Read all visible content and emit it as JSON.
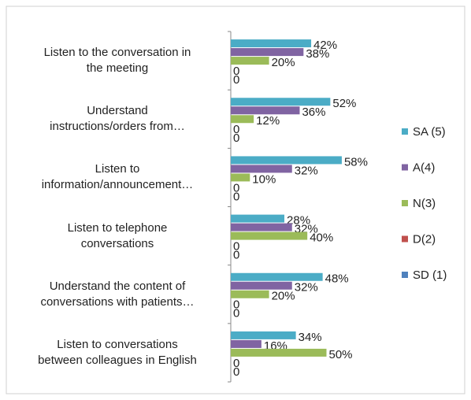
{
  "chart_data": {
    "type": "bar",
    "orientation": "horizontal",
    "categories": [
      "Listen to the conversation in\nthe meeting",
      "Understand\ninstructions/orders from…",
      "Listen to\ninformation/announcement…",
      "Listen to  telephone\nconversations",
      "Understand the content of\nconversations with patients…",
      "Listen to conversations\nbetween colleagues in English"
    ],
    "series": [
      {
        "name": "SA (5)",
        "color": "#4bacc6",
        "values": [
          42,
          52,
          58,
          28,
          48,
          34
        ],
        "value_labels": [
          "42%",
          "52%",
          "58%",
          "28%",
          "48%",
          "34%"
        ]
      },
      {
        "name": "A(4)",
        "color": "#8064a2",
        "values": [
          38,
          36,
          32,
          32,
          32,
          16
        ],
        "value_labels": [
          "38%",
          "36%",
          "32%",
          "32%",
          "32%",
          "16%"
        ]
      },
      {
        "name": "N(3)",
        "color": "#9bbb59",
        "values": [
          20,
          12,
          10,
          40,
          20,
          50
        ],
        "value_labels": [
          "20%",
          "12%",
          "10%",
          "40%",
          "20%",
          "50%"
        ]
      },
      {
        "name": "D(2)",
        "color": "#c0504d",
        "values": [
          0,
          0,
          0,
          0,
          0,
          0
        ],
        "value_labels": [
          "0",
          "0",
          "0",
          "0",
          "0",
          "0"
        ]
      },
      {
        "name": "SD (1)",
        "color": "#4f81bd",
        "values": [
          0,
          0,
          0,
          0,
          0,
          0
        ],
        "value_labels": [
          "0",
          "0",
          "0",
          "0",
          "0",
          "0"
        ]
      }
    ],
    "xlim": [
      0,
      100
    ],
    "legend": "right"
  }
}
